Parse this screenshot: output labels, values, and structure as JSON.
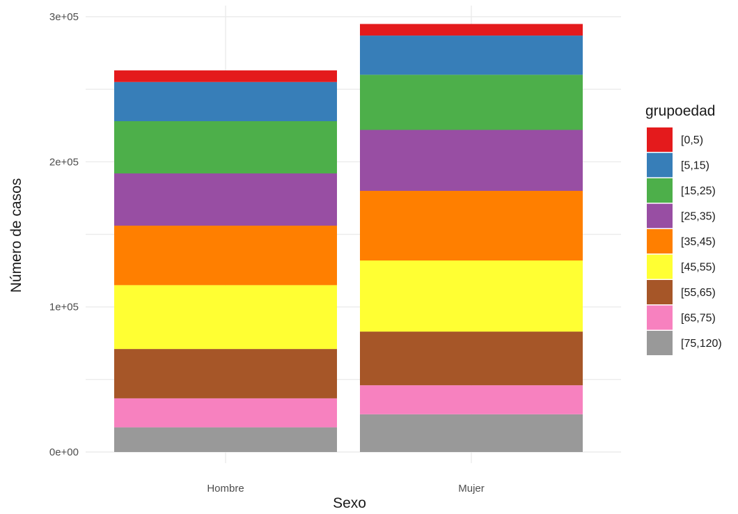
{
  "chart_data": {
    "type": "bar",
    "stacked": true,
    "categories": [
      "Hombre",
      "Mujer"
    ],
    "xlabel": "Sexo",
    "ylabel": "Número de casos",
    "ylim": [
      0,
      300000
    ],
    "yticks": [
      0,
      100000,
      200000,
      300000
    ],
    "ytick_labels": [
      "0e+00",
      "1e+05",
      "2e+05",
      "3e+05"
    ],
    "grid": true,
    "legend": {
      "title": "grupoedad",
      "position": "right"
    },
    "series": [
      {
        "name": "[0,5)",
        "color": "#E41A1C",
        "values": [
          8000,
          8000
        ]
      },
      {
        "name": "[5,15)",
        "color": "#377EB8",
        "values": [
          27000,
          27000
        ]
      },
      {
        "name": "[15,25)",
        "color": "#4DAF4A",
        "values": [
          36000,
          38000
        ]
      },
      {
        "name": "[25,35)",
        "color": "#984EA3",
        "values": [
          36000,
          42000
        ]
      },
      {
        "name": "[35,45)",
        "color": "#FF7F00",
        "values": [
          41000,
          48000
        ]
      },
      {
        "name": "[45,55)",
        "color": "#FFFF33",
        "values": [
          44000,
          49000
        ]
      },
      {
        "name": "[55,65)",
        "color": "#A65628",
        "values": [
          34000,
          37000
        ]
      },
      {
        "name": "[65,75)",
        "color": "#F781BF",
        "values": [
          20000,
          20000
        ]
      },
      {
        "name": "[75,120)",
        "color": "#999999",
        "values": [
          17000,
          26000
        ]
      }
    ]
  }
}
